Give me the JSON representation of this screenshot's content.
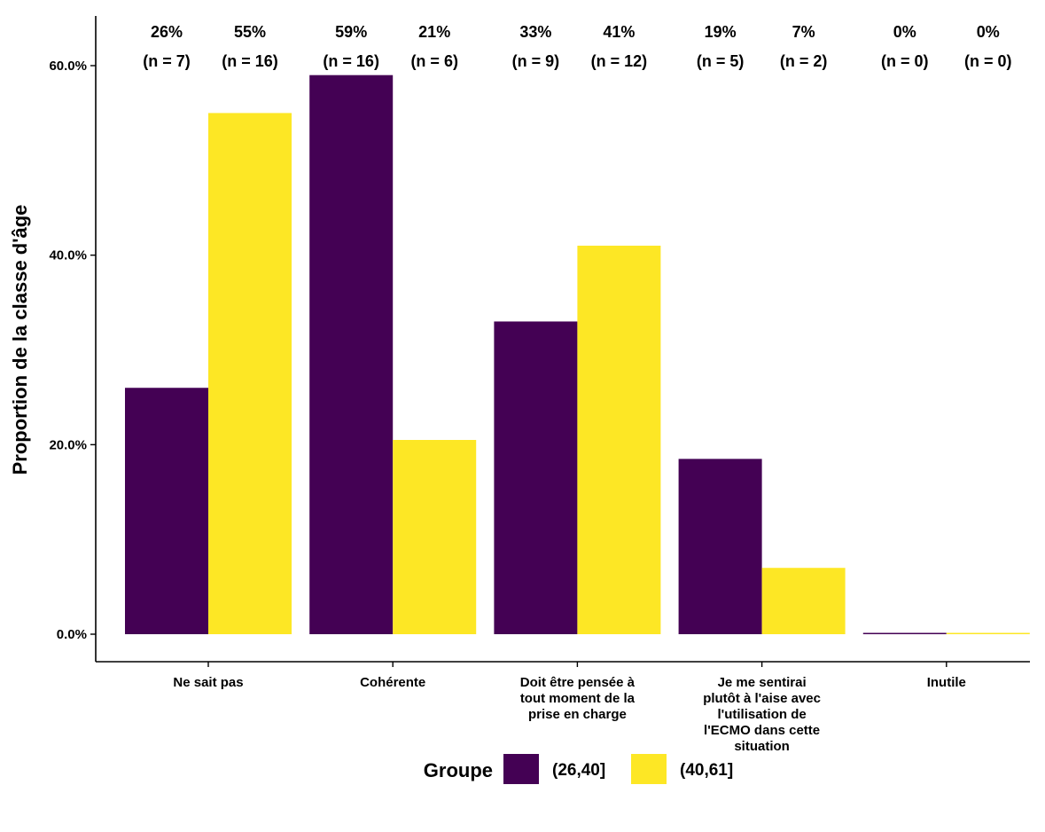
{
  "chart_data": {
    "type": "bar",
    "title": "",
    "xlabel": "",
    "ylabel": "Proportion de la classe d'âge",
    "ylim": [
      0,
      0.62
    ],
    "yticks": [
      0,
      0.2,
      0.4,
      0.6
    ],
    "ytick_labels": [
      "0.0%",
      "20.0%",
      "40.0%",
      "60.0%"
    ],
    "categories": [
      [
        "Ne sait pas"
      ],
      [
        "Cohérente"
      ],
      [
        "Doit être pensée à",
        "tout moment de la",
        "prise en charge"
      ],
      [
        "Je me sentirai",
        "plutôt à l'aise avec",
        "l'utilisation de",
        "l'ECMO dans cette",
        "situation"
      ],
      [
        "Inutile"
      ]
    ],
    "series": [
      {
        "name": "(26,40]",
        "color": "#440154",
        "values": [
          0.26,
          0.59,
          0.33,
          0.185,
          0.0
        ],
        "pct_labels": [
          "26%",
          "59%",
          "33%",
          "19%",
          "0%"
        ],
        "n_labels": [
          "(n = 7)",
          "(n = 16)",
          "(n = 9)",
          "(n = 5)",
          "(n = 0)"
        ]
      },
      {
        "name": "(40,61]",
        "color": "#FDE725",
        "values": [
          0.55,
          0.205,
          0.41,
          0.07,
          0.0
        ],
        "pct_labels": [
          "55%",
          "21%",
          "41%",
          "7%",
          "0%"
        ],
        "n_labels": [
          "(n = 16)",
          "(n = 6)",
          "(n = 12)",
          "(n = 2)",
          "(n = 0)"
        ]
      }
    ],
    "grid": false,
    "legend": {
      "title": "Groupe",
      "placement": "bottom"
    }
  }
}
